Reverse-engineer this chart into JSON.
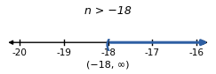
{
  "title": "n > −18",
  "interval_notation": "(−18, ∞)",
  "x_min": -20,
  "x_max": -16,
  "ticks": [
    -20,
    -19,
    -18,
    -17,
    -16
  ],
  "open_point": -18,
  "line_color": "#2e5fa3",
  "axis_color": "black",
  "title_fontsize": 9,
  "label_fontsize": 7.5,
  "interval_fontsize": 8,
  "background_color": "white",
  "figwidth": 2.43,
  "figheight": 0.84,
  "dpi": 100
}
